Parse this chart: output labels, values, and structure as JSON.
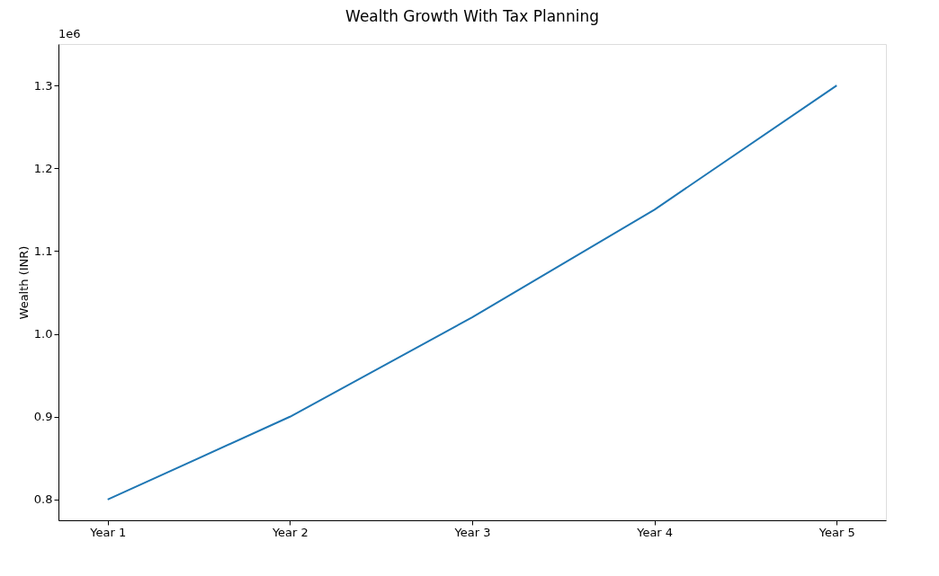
{
  "chart_data": {
    "type": "line",
    "title": "Wealth Growth With Tax Planning",
    "ylabel": "Wealth (INR)",
    "categories": [
      "Year 1",
      "Year 2",
      "Year 3",
      "Year 4",
      "Year 5"
    ],
    "series": [
      {
        "color": "#1f77b4",
        "values": [
          0.8,
          0.9,
          1.02,
          1.15,
          1.3
        ]
      }
    ],
    "ylim": [
      0.775,
      1.35
    ],
    "yticks": [
      0.8,
      0.9,
      {
        "value": 1.0,
        "label": "1.0"
      },
      1.1,
      1.2,
      1.3
    ],
    "annotations": [
      "1e6"
    ],
    "grid": false,
    "line_style": "solid",
    "marker": "none"
  }
}
